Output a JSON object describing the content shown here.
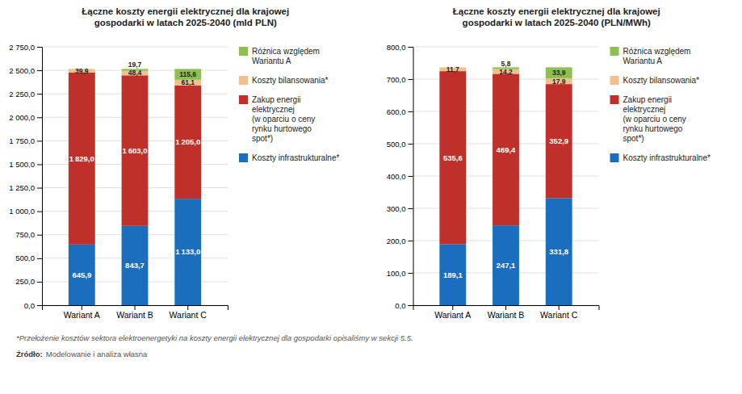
{
  "chart_data": [
    {
      "type": "bar",
      "stacked": true,
      "title": "Łączne koszty energii elektrycznej dla krajowej\ngospodarki w latach 2025-2040 (mld PLN)",
      "categories": [
        "Wariant A",
        "Wariant B",
        "Wariant C"
      ],
      "series": [
        {
          "name": "Koszty infrastrukturalne*",
          "color": "#1A6EBD",
          "values": [
            645.9,
            843.7,
            1133.0
          ],
          "value_labels": [
            "645,9",
            "843,7",
            "1 133,0"
          ]
        },
        {
          "name": "Zakup energii\nelektrycznej\n(w oparciu o ceny\nrynku hurtowego\nspot*)",
          "color": "#C0302A",
          "values": [
            1829.0,
            1603.0,
            1205.0
          ],
          "value_labels": [
            "1 829,0",
            "1 603,0",
            "1 205,0"
          ]
        },
        {
          "name": "Koszty bilansowania*",
          "color": "#F0C090",
          "values": [
            39.9,
            48.4,
            61.1
          ],
          "value_labels": [
            "39,9",
            "48,4",
            "61,1"
          ]
        },
        {
          "name": "Różnica względem\nWariantu A",
          "color": "#8DC050",
          "values": [
            0.0,
            19.7,
            115.6
          ],
          "value_labels": [
            null,
            "19,7",
            "115,6"
          ]
        }
      ],
      "ylim": [
        0,
        2750
      ],
      "yticks": [
        {
          "value": 0,
          "label": "0,0"
        },
        {
          "value": 250,
          "label": "250,0"
        },
        {
          "value": 500,
          "label": "500,0"
        },
        {
          "value": 750,
          "label": "750,0"
        },
        {
          "value": 1000,
          "label": "1 000,0"
        },
        {
          "value": 1250,
          "label": "1 250,0"
        },
        {
          "value": 1500,
          "label": "1 500,0"
        },
        {
          "value": 1750,
          "label": "1 750,0"
        },
        {
          "value": 2000,
          "label": "2 000,0"
        },
        {
          "value": 2250,
          "label": "2 250,0"
        },
        {
          "value": 2500,
          "label": "2 500,0"
        },
        {
          "value": 2750,
          "label": "2 750,0"
        }
      ],
      "grid": true,
      "legend": "right",
      "data_labels": true,
      "annotations": [
        "*Przełożenie kosztów sektora elektroenergetyki na koszty energii elektrycznej dla gospodarki opisaliśmy w sekcji 5.5.",
        "Źródło:",
        "Modelowanie i analiza własna"
      ]
    },
    {
      "type": "bar",
      "stacked": true,
      "title": "Łączne koszty energii elektrycznej dla krajowej\ngospodarki w latach 2025-2040 (PLN/MWh)",
      "categories": [
        "Wariant A",
        "Wariant B",
        "Wariant C"
      ],
      "series": [
        {
          "name": "Koszty infrastrukturalne*",
          "color": "#1A6EBD",
          "values": [
            189.1,
            247.1,
            331.8
          ],
          "value_labels": [
            "189,1",
            "247,1",
            "331,8"
          ]
        },
        {
          "name": "Zakup energii\nelektrycznej\n(w oparciu o ceny\nrynku hurtowego\nspot*)",
          "color": "#C0302A",
          "values": [
            535.6,
            469.4,
            352.9
          ],
          "value_labels": [
            "535,6",
            "469,4",
            "352,9"
          ]
        },
        {
          "name": "Koszty bilansowania*",
          "color": "#F0C090",
          "values": [
            11.7,
            14.2,
            17.9
          ],
          "value_labels": [
            "11,7",
            "14,2",
            "17,9"
          ]
        },
        {
          "name": "Różnica względem\nWariantu A",
          "color": "#8DC050",
          "values": [
            0.0,
            5.8,
            33.9
          ],
          "value_labels": [
            null,
            "5,8",
            "33,9"
          ]
        }
      ],
      "ylim": [
        0,
        800
      ],
      "yticks": [
        {
          "value": 0,
          "label": "0,0"
        },
        {
          "value": 100,
          "label": "100,0"
        },
        {
          "value": 200,
          "label": "200,0"
        },
        {
          "value": 300,
          "label": "300,0"
        },
        {
          "value": 400,
          "label": "400,0"
        },
        {
          "value": 500,
          "label": "500,0"
        },
        {
          "value": 600,
          "label": "600,0"
        },
        {
          "value": 700,
          "label": "700,0"
        },
        {
          "value": 800,
          "label": "800,0"
        }
      ],
      "grid": true,
      "legend": "right",
      "data_labels": true
    }
  ]
}
